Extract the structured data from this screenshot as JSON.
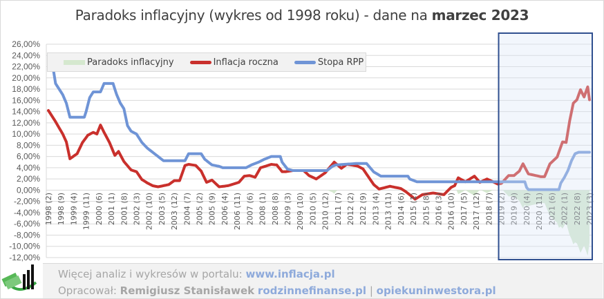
{
  "title_prefix": "Paradoks inflacyjny (wykres od 1998 roku) - dane na ",
  "title_bold": "marzec 2023",
  "footer": {
    "line1_text": "Więcej analiz i wykresów w portalu: ",
    "line1_link": "www.inflacja.pl",
    "line2_text": "Opracował: ",
    "line2_author": "Remigiusz Stanisławek",
    "line2_link1": "rodzinnefinanse.pl",
    "line2_sep": " | ",
    "line2_link2": "opiekuninwestora.pl"
  },
  "chart_data": {
    "type": "line",
    "title": "Paradoks inflacyjny (wykres od 1998 roku) - dane na marzec 2023",
    "xlabel": "",
    "ylabel": "",
    "ylim": [
      -12,
      26
    ],
    "yticks": [
      "26,00%",
      "24,00%",
      "22,00%",
      "20,00%",
      "18,00%",
      "16,00%",
      "14,00%",
      "12,00%",
      "10,00%",
      "8,00%",
      "6,00%",
      "4,00%",
      "2,00%",
      "0,00%",
      "-2,00%",
      "-4,00%",
      "-6,00%",
      "-8,00%",
      "-10,00%",
      "-12,00%"
    ],
    "ytick_values": [
      26,
      24,
      22,
      20,
      18,
      16,
      14,
      12,
      10,
      8,
      6,
      4,
      2,
      0,
      -2,
      -4,
      -6,
      -8,
      -10,
      -12
    ],
    "x_start": "1998-02",
    "x_end": "2023-03",
    "xtick_labels": [
      "1998 (2)",
      "1998 (9)",
      "1999 (4)",
      "1999 (11)",
      "2000 (6)",
      "2001 (1)",
      "2001 (8)",
      "2002 (3)",
      "2002 (10)",
      "2003 (5)",
      "2003 (12)",
      "2004 (7)",
      "2005 (2)",
      "2005 (9)",
      "2006 (4)",
      "2006 (11)",
      "2007 (6)",
      "2008 (1)",
      "2008 (8)",
      "2009 (3)",
      "2009 (10)",
      "2010 (5)",
      "2010 (12)",
      "2011 (7)",
      "2012 (2)",
      "2012 (9)",
      "2013 (4)",
      "2013 (11)",
      "2014 (6)",
      "2015 (1)",
      "2015 (8)",
      "2016 (3)",
      "2016 (10)",
      "2017 (5)",
      "2017 (12)",
      "2018 (7)",
      "2019 (2)",
      "2019 (9)",
      "2020 (4)",
      "2020 (11)",
      "2021 (6)",
      "2022 (1)",
      "2022 (8)",
      "2023 (3)"
    ],
    "legend_position": "top-left",
    "highlight_range": [
      "2019-02",
      "2023-03"
    ],
    "series": [
      {
        "name": "Paradoks inflacyjny",
        "color": "#d5e8cf",
        "kind": "area",
        "formula": "min(0, Stopa RPP - Inflacja roczna)"
      },
      {
        "name": "Inflacja roczna",
        "color": "#c9302c",
        "kind": "line",
        "points": [
          [
            "1998-02",
            14.2
          ],
          [
            "1998-06",
            12.2
          ],
          [
            "1998-10",
            10.0
          ],
          [
            "1998-12",
            8.6
          ],
          [
            "1999-02",
            5.6
          ],
          [
            "1999-06",
            6.5
          ],
          [
            "1999-09",
            8.5
          ],
          [
            "1999-12",
            9.8
          ],
          [
            "2000-03",
            10.3
          ],
          [
            "2000-05",
            10.0
          ],
          [
            "2000-07",
            11.6
          ],
          [
            "2000-09",
            10.3
          ],
          [
            "2000-12",
            8.5
          ],
          [
            "2001-03",
            6.2
          ],
          [
            "2001-05",
            6.9
          ],
          [
            "2001-08",
            5.1
          ],
          [
            "2001-12",
            3.6
          ],
          [
            "2002-03",
            3.3
          ],
          [
            "2002-06",
            1.9
          ],
          [
            "2002-09",
            1.3
          ],
          [
            "2002-12",
            0.8
          ],
          [
            "2003-03",
            0.6
          ],
          [
            "2003-06",
            0.8
          ],
          [
            "2003-09",
            1.0
          ],
          [
            "2003-12",
            1.7
          ],
          [
            "2004-03",
            1.7
          ],
          [
            "2004-06",
            4.4
          ],
          [
            "2004-08",
            4.6
          ],
          [
            "2004-12",
            4.4
          ],
          [
            "2005-03",
            3.4
          ],
          [
            "2005-06",
            1.4
          ],
          [
            "2005-09",
            1.8
          ],
          [
            "2006-01",
            0.6
          ],
          [
            "2006-06",
            0.8
          ],
          [
            "2006-12",
            1.4
          ],
          [
            "2007-03",
            2.5
          ],
          [
            "2007-06",
            2.6
          ],
          [
            "2007-09",
            2.3
          ],
          [
            "2007-12",
            4.0
          ],
          [
            "2008-02",
            4.2
          ],
          [
            "2008-06",
            4.6
          ],
          [
            "2008-09",
            4.5
          ],
          [
            "2008-12",
            3.3
          ],
          [
            "2009-02",
            3.3
          ],
          [
            "2009-06",
            3.5
          ],
          [
            "2009-12",
            3.5
          ],
          [
            "2010-03",
            2.6
          ],
          [
            "2010-07",
            2.0
          ],
          [
            "2010-12",
            3.1
          ],
          [
            "2011-05",
            5.0
          ],
          [
            "2011-09",
            3.9
          ],
          [
            "2011-12",
            4.6
          ],
          [
            "2012-06",
            4.3
          ],
          [
            "2012-09",
            3.8
          ],
          [
            "2012-12",
            2.4
          ],
          [
            "2013-03",
            1.0
          ],
          [
            "2013-06",
            0.2
          ],
          [
            "2013-12",
            0.7
          ],
          [
            "2014-06",
            0.3
          ],
          [
            "2014-09",
            -0.3
          ],
          [
            "2015-02",
            -1.6
          ],
          [
            "2015-06",
            -0.8
          ],
          [
            "2015-12",
            -0.5
          ],
          [
            "2016-06",
            -0.8
          ],
          [
            "2016-10",
            0.5
          ],
          [
            "2016-12",
            0.8
          ],
          [
            "2017-02",
            2.2
          ],
          [
            "2017-06",
            1.5
          ],
          [
            "2017-11",
            2.5
          ],
          [
            "2018-02",
            1.4
          ],
          [
            "2018-06",
            2.0
          ],
          [
            "2018-12",
            1.1
          ],
          [
            "2019-02",
            1.2
          ],
          [
            "2019-06",
            2.6
          ],
          [
            "2019-09",
            2.6
          ],
          [
            "2019-12",
            3.4
          ],
          [
            "2020-02",
            4.7
          ],
          [
            "2020-05",
            2.9
          ],
          [
            "2020-12",
            2.4
          ],
          [
            "2021-02",
            2.4
          ],
          [
            "2021-05",
            4.7
          ],
          [
            "2021-09",
            5.9
          ],
          [
            "2021-12",
            8.6
          ],
          [
            "2022-02",
            8.5
          ],
          [
            "2022-04",
            12.4
          ],
          [
            "2022-06",
            15.5
          ],
          [
            "2022-08",
            16.1
          ],
          [
            "2022-10",
            17.9
          ],
          [
            "2022-12",
            16.6
          ],
          [
            "2023-02",
            18.4
          ],
          [
            "2023-03",
            16.1
          ]
        ]
      },
      {
        "name": "Stopa RPP",
        "color": "#6f94d6",
        "kind": "line",
        "points": [
          [
            "1998-02",
            24.0
          ],
          [
            "1998-04",
            23.0
          ],
          [
            "1998-06",
            19.0
          ],
          [
            "1998-08",
            18.0
          ],
          [
            "1998-10",
            17.0
          ],
          [
            "1998-12",
            15.5
          ],
          [
            "1999-02",
            13.0
          ],
          [
            "1999-10",
            13.0
          ],
          [
            "1999-11",
            14.0
          ],
          [
            "2000-01",
            16.5
          ],
          [
            "2000-03",
            17.5
          ],
          [
            "2000-07",
            17.5
          ],
          [
            "2000-09",
            19.0
          ],
          [
            "2001-02",
            19.0
          ],
          [
            "2001-04",
            17.0
          ],
          [
            "2001-06",
            15.5
          ],
          [
            "2001-08",
            14.5
          ],
          [
            "2001-10",
            11.5
          ],
          [
            "2001-12",
            10.5
          ],
          [
            "2002-03",
            10.0
          ],
          [
            "2002-06",
            8.5
          ],
          [
            "2002-09",
            7.5
          ],
          [
            "2002-12",
            6.75
          ],
          [
            "2003-03",
            6.0
          ],
          [
            "2003-06",
            5.25
          ],
          [
            "2004-06",
            5.25
          ],
          [
            "2004-08",
            6.5
          ],
          [
            "2005-03",
            6.5
          ],
          [
            "2005-05",
            5.5
          ],
          [
            "2005-07",
            5.0
          ],
          [
            "2005-09",
            4.5
          ],
          [
            "2006-01",
            4.25
          ],
          [
            "2006-03",
            4.0
          ],
          [
            "2007-04",
            4.0
          ],
          [
            "2007-07",
            4.5
          ],
          [
            "2007-11",
            5.0
          ],
          [
            "2008-02",
            5.5
          ],
          [
            "2008-06",
            6.0
          ],
          [
            "2008-11",
            6.0
          ],
          [
            "2008-12",
            5.0
          ],
          [
            "2009-03",
            3.75
          ],
          [
            "2009-06",
            3.5
          ],
          [
            "2011-01",
            3.5
          ],
          [
            "2011-04",
            4.25
          ],
          [
            "2011-06",
            4.5
          ],
          [
            "2012-05",
            4.75
          ],
          [
            "2012-11",
            4.75
          ],
          [
            "2013-01",
            4.0
          ],
          [
            "2013-03",
            3.25
          ],
          [
            "2013-07",
            2.5
          ],
          [
            "2014-10",
            2.5
          ],
          [
            "2014-11",
            2.0
          ],
          [
            "2015-03",
            1.5
          ],
          [
            "2020-03",
            1.5
          ],
          [
            "2020-04",
            0.5
          ],
          [
            "2020-05",
            0.1
          ],
          [
            "2021-10",
            0.1
          ],
          [
            "2021-11",
            1.25
          ],
          [
            "2022-01",
            2.25
          ],
          [
            "2022-03",
            3.5
          ],
          [
            "2022-05",
            5.25
          ],
          [
            "2022-07",
            6.5
          ],
          [
            "2022-09",
            6.75
          ],
          [
            "2023-03",
            6.75
          ]
        ]
      }
    ]
  }
}
